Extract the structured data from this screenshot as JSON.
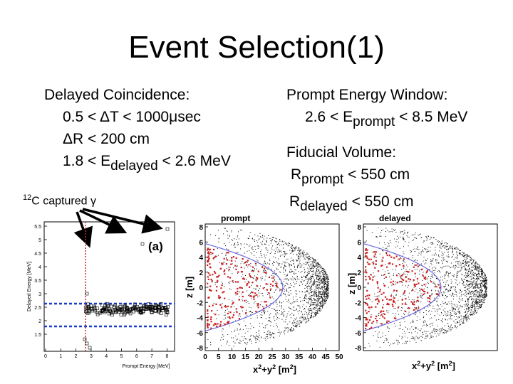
{
  "slide": {
    "title": "Event Selection(1)",
    "left": {
      "heading": "Delayed Coincidence:",
      "dt": "0.5 < ΔT < 1000μsec",
      "dr": "ΔR < 200 cm",
      "e_pre": "1.8 < E",
      "e_sub": "delayed",
      "e_post": " < 2.6 MeV"
    },
    "right": {
      "prompt_heading": "Prompt Energy Window:",
      "pe_pre": "2.6 < E",
      "pe_sub": "prompt",
      "pe_post": " < 8.5 MeV",
      "fid_heading": "Fiducial Volume:",
      "r1_pre": "R",
      "r1_sub": "prompt",
      "r1_post": " < 550 cm",
      "r2_pre": "R",
      "r2_sub": "delayed",
      "r2_post": " < 550 cm"
    },
    "note": {
      "sup": "12",
      "text": "C captured γ"
    }
  },
  "plot_a": {
    "label": "(a)",
    "ylabel": "Delayed Energy [MeV]",
    "xlabel": "Prompt Energy [MeV]",
    "xticks": [
      "0",
      "1",
      "2",
      "3",
      "4",
      "5",
      "6",
      "7",
      "8"
    ],
    "yticks": [
      "1.5",
      "2",
      "2.5",
      "3",
      "3.5",
      "4",
      "4.5",
      "5",
      "5.5"
    ]
  },
  "plot_prompt": {
    "title": "prompt",
    "ylabel": "z [m]",
    "xlabel_pre": "x",
    "xlabel_mid": "+y",
    "xlabel_post": " [m",
    "xlabel_end": "]",
    "sup": "2",
    "yticks": [
      "8",
      "6",
      "4",
      "2",
      "0",
      "-2",
      "-4",
      "-6",
      "-8"
    ],
    "xticks": [
      "0",
      "5",
      "10",
      "15",
      "20",
      "25",
      "30",
      "35",
      "40",
      "45",
      "50"
    ]
  },
  "plot_delayed": {
    "title": "delayed",
    "ylabel": "z [m]",
    "xlabel_pre": "x",
    "xlabel_mid": "+y",
    "xlabel_post": " [m",
    "xlabel_end": "]",
    "sup": "2",
    "yticks": [
      "8",
      "6",
      "4",
      "2",
      "0",
      "-2",
      "-4",
      "-6",
      "-8"
    ]
  },
  "colors": {
    "red_points": "#cc2222",
    "blue_lines": "#1a3ccc",
    "fiducial_curve": "#6a6adf"
  }
}
